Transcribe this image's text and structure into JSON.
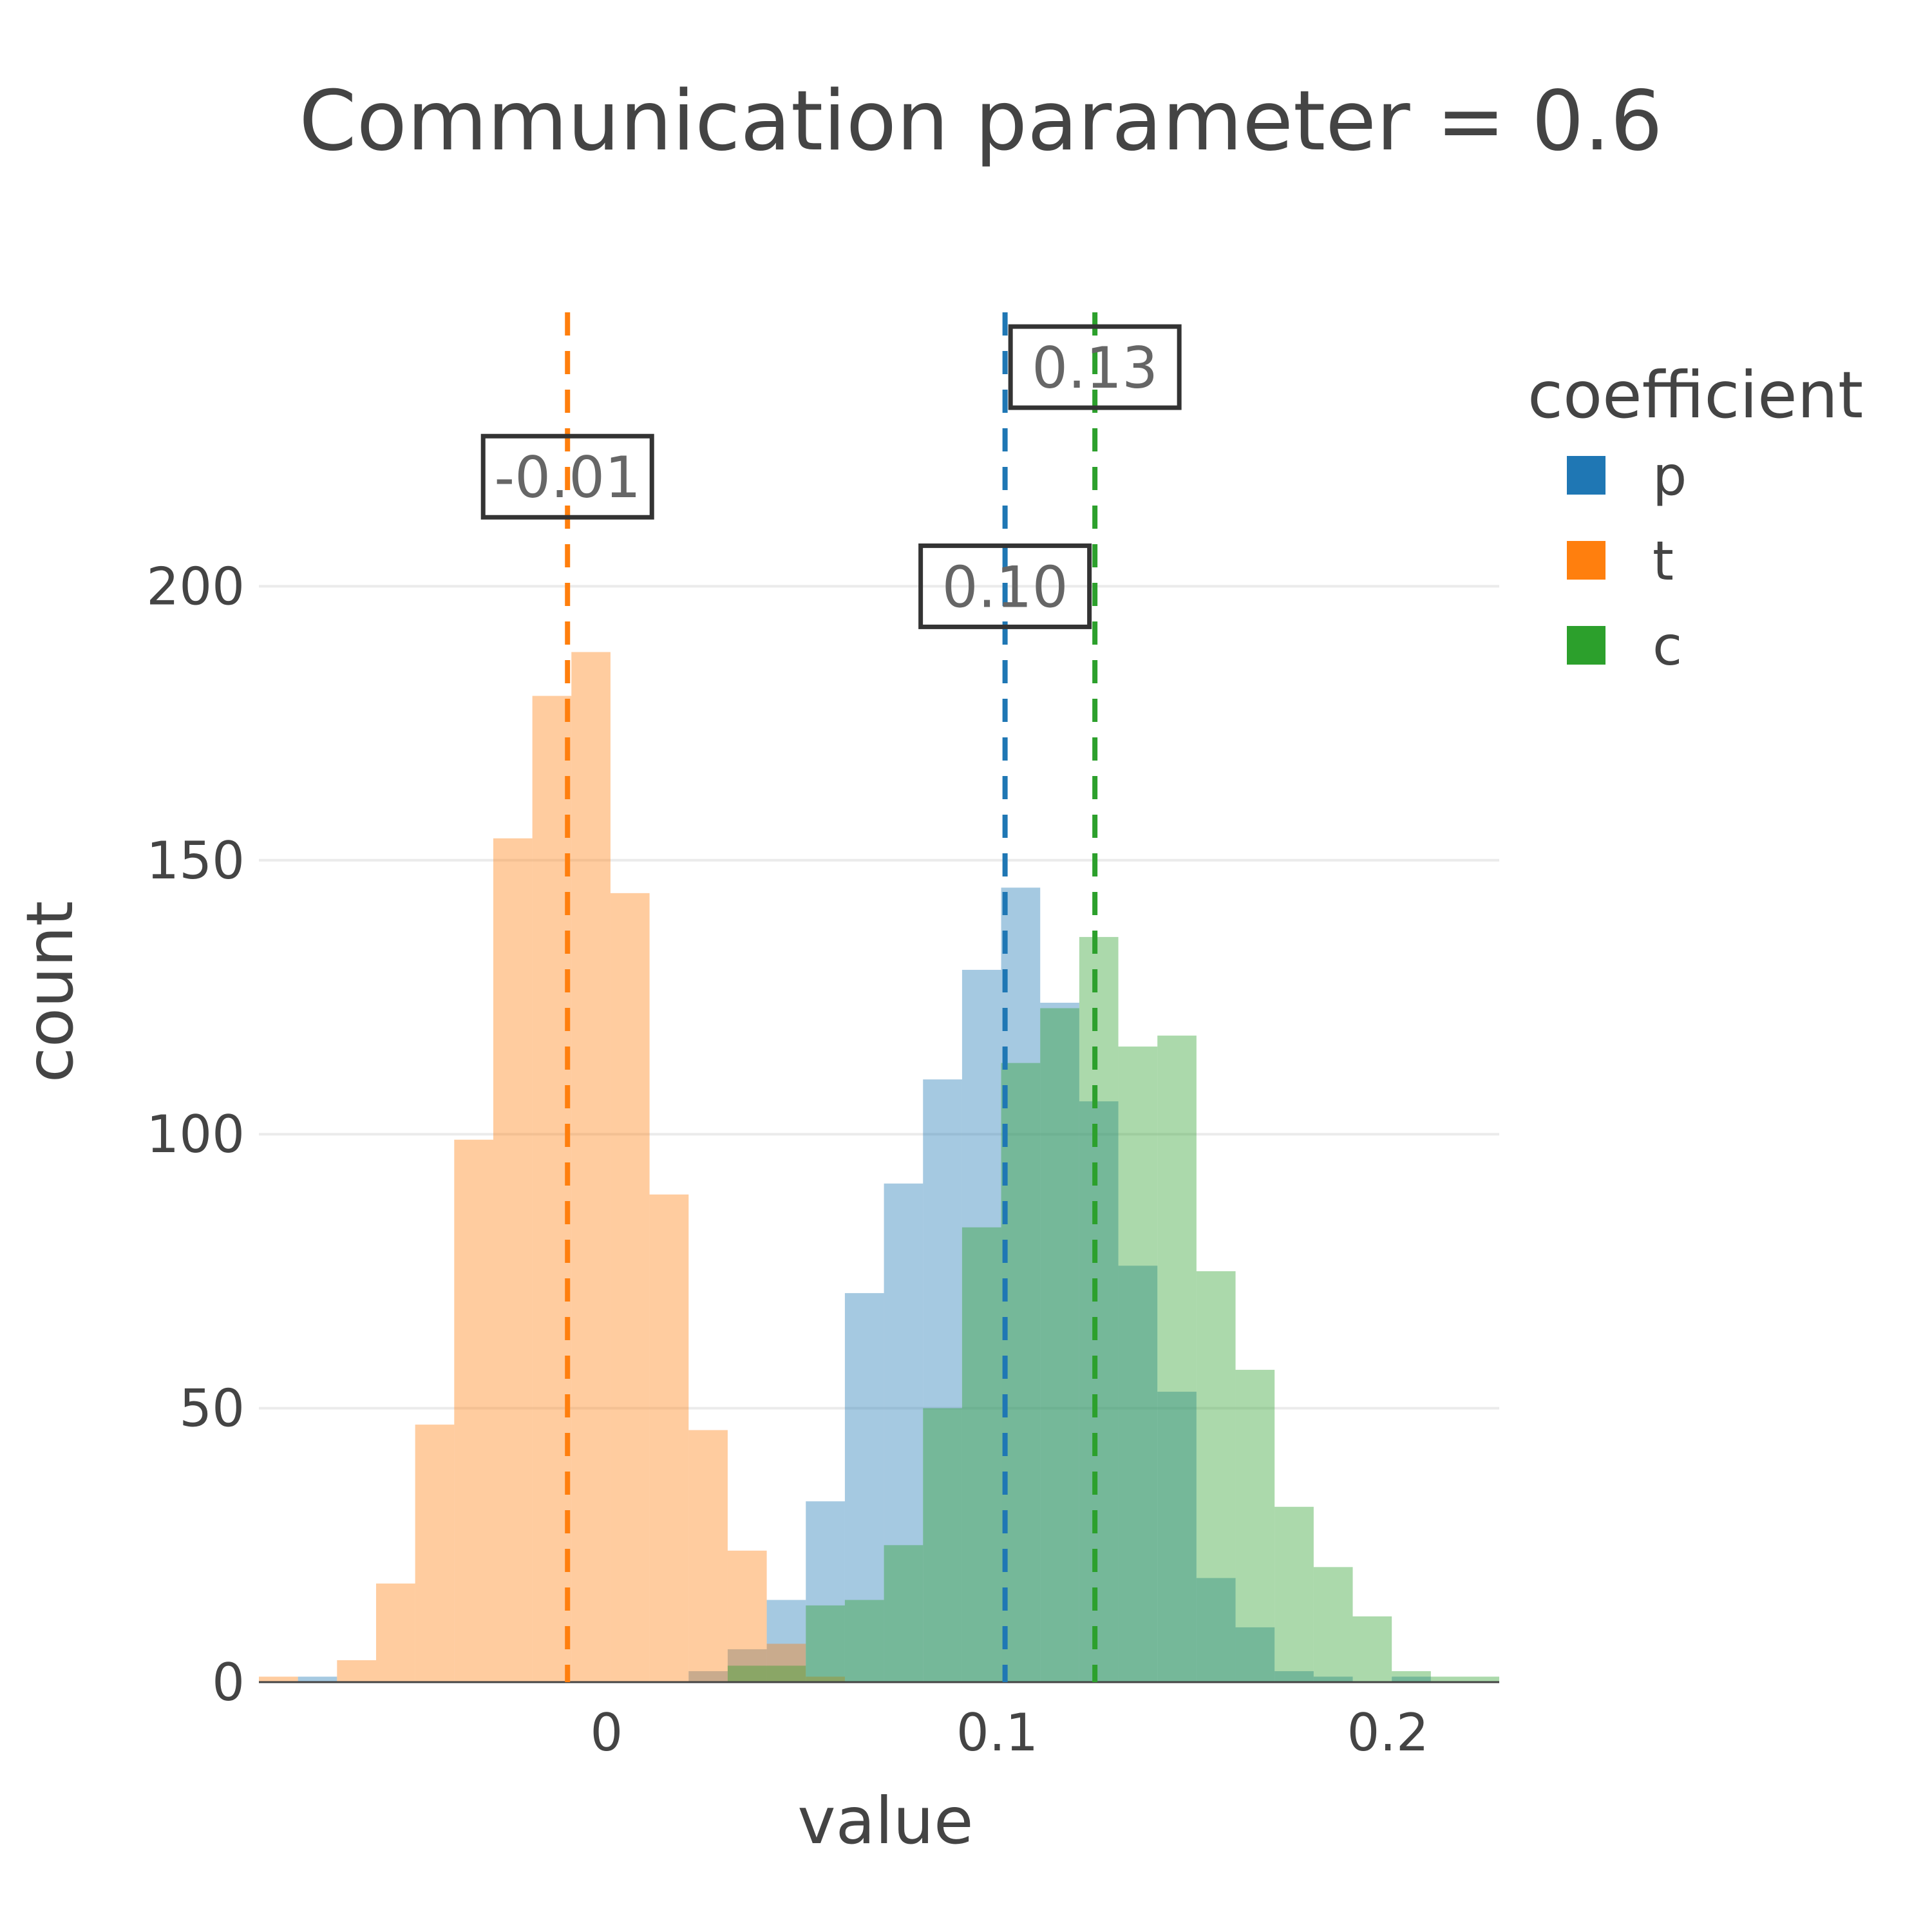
{
  "chart_data": {
    "type": "histogram",
    "title": "Communication parameter = 0.6",
    "xlabel": "value",
    "ylabel": "count",
    "xlim": [
      -0.089,
      0.2285
    ],
    "ylim": [
      0,
      250
    ],
    "x_ticks": [
      0,
      0.1,
      0.2
    ],
    "x_tick_labels": [
      "0",
      "0.1",
      "0.2"
    ],
    "y_ticks": [
      0,
      50,
      100,
      150,
      200
    ],
    "y_tick_labels": [
      "0",
      "50",
      "100",
      "150",
      "200"
    ],
    "grid": true,
    "bin_width": 0.01,
    "legend": {
      "title": "coefficient",
      "position": "right"
    },
    "series": [
      {
        "name": "p",
        "color": "#1f77b4",
        "bin_edges": [
          -0.079,
          -0.069,
          -0.059,
          -0.049,
          -0.039,
          -0.029,
          -0.019,
          -0.009,
          0.001,
          0.011,
          0.021,
          0.031,
          0.041,
          0.051,
          0.061,
          0.071,
          0.081,
          0.091,
          0.101,
          0.111,
          0.121,
          0.131,
          0.141,
          0.151,
          0.161,
          0.171,
          0.181,
          0.191,
          0.201,
          0.211,
          0.221
        ],
        "counts": [
          1,
          0,
          0,
          0,
          0,
          0,
          0,
          0,
          0,
          0,
          2,
          6,
          15,
          33,
          71,
          91,
          110,
          130,
          145,
          124,
          106,
          76,
          53,
          19,
          10,
          2,
          1,
          0,
          1,
          0,
          0
        ],
        "mean": 0.102,
        "mean_label": "0.10"
      },
      {
        "name": "t",
        "color": "#ff7f0e",
        "bin_edges": [
          -0.089,
          -0.079,
          -0.069,
          -0.059,
          -0.049,
          -0.039,
          -0.029,
          -0.019,
          -0.009,
          0.001,
          0.011,
          0.021,
          0.031,
          0.041,
          0.051
        ],
        "counts": [
          1,
          0,
          4,
          18,
          47,
          99,
          154,
          180,
          188,
          144,
          89,
          46,
          24,
          7,
          1
        ],
        "mean": -0.01,
        "mean_label": "-0.01"
      },
      {
        "name": "c",
        "color": "#2ca02c",
        "bin_edges": [
          0.031,
          0.041,
          0.051,
          0.061,
          0.071,
          0.081,
          0.091,
          0.101,
          0.111,
          0.121,
          0.131,
          0.141,
          0.151,
          0.161,
          0.171,
          0.181,
          0.191,
          0.201,
          0.211,
          0.221
        ],
        "counts": [
          3,
          3,
          14,
          15,
          25,
          50,
          83,
          113,
          123,
          136,
          116,
          118,
          75,
          57,
          32,
          21,
          12,
          2,
          1,
          1
        ],
        "mean": 0.125,
        "mean_label": "0.13"
      }
    ]
  }
}
